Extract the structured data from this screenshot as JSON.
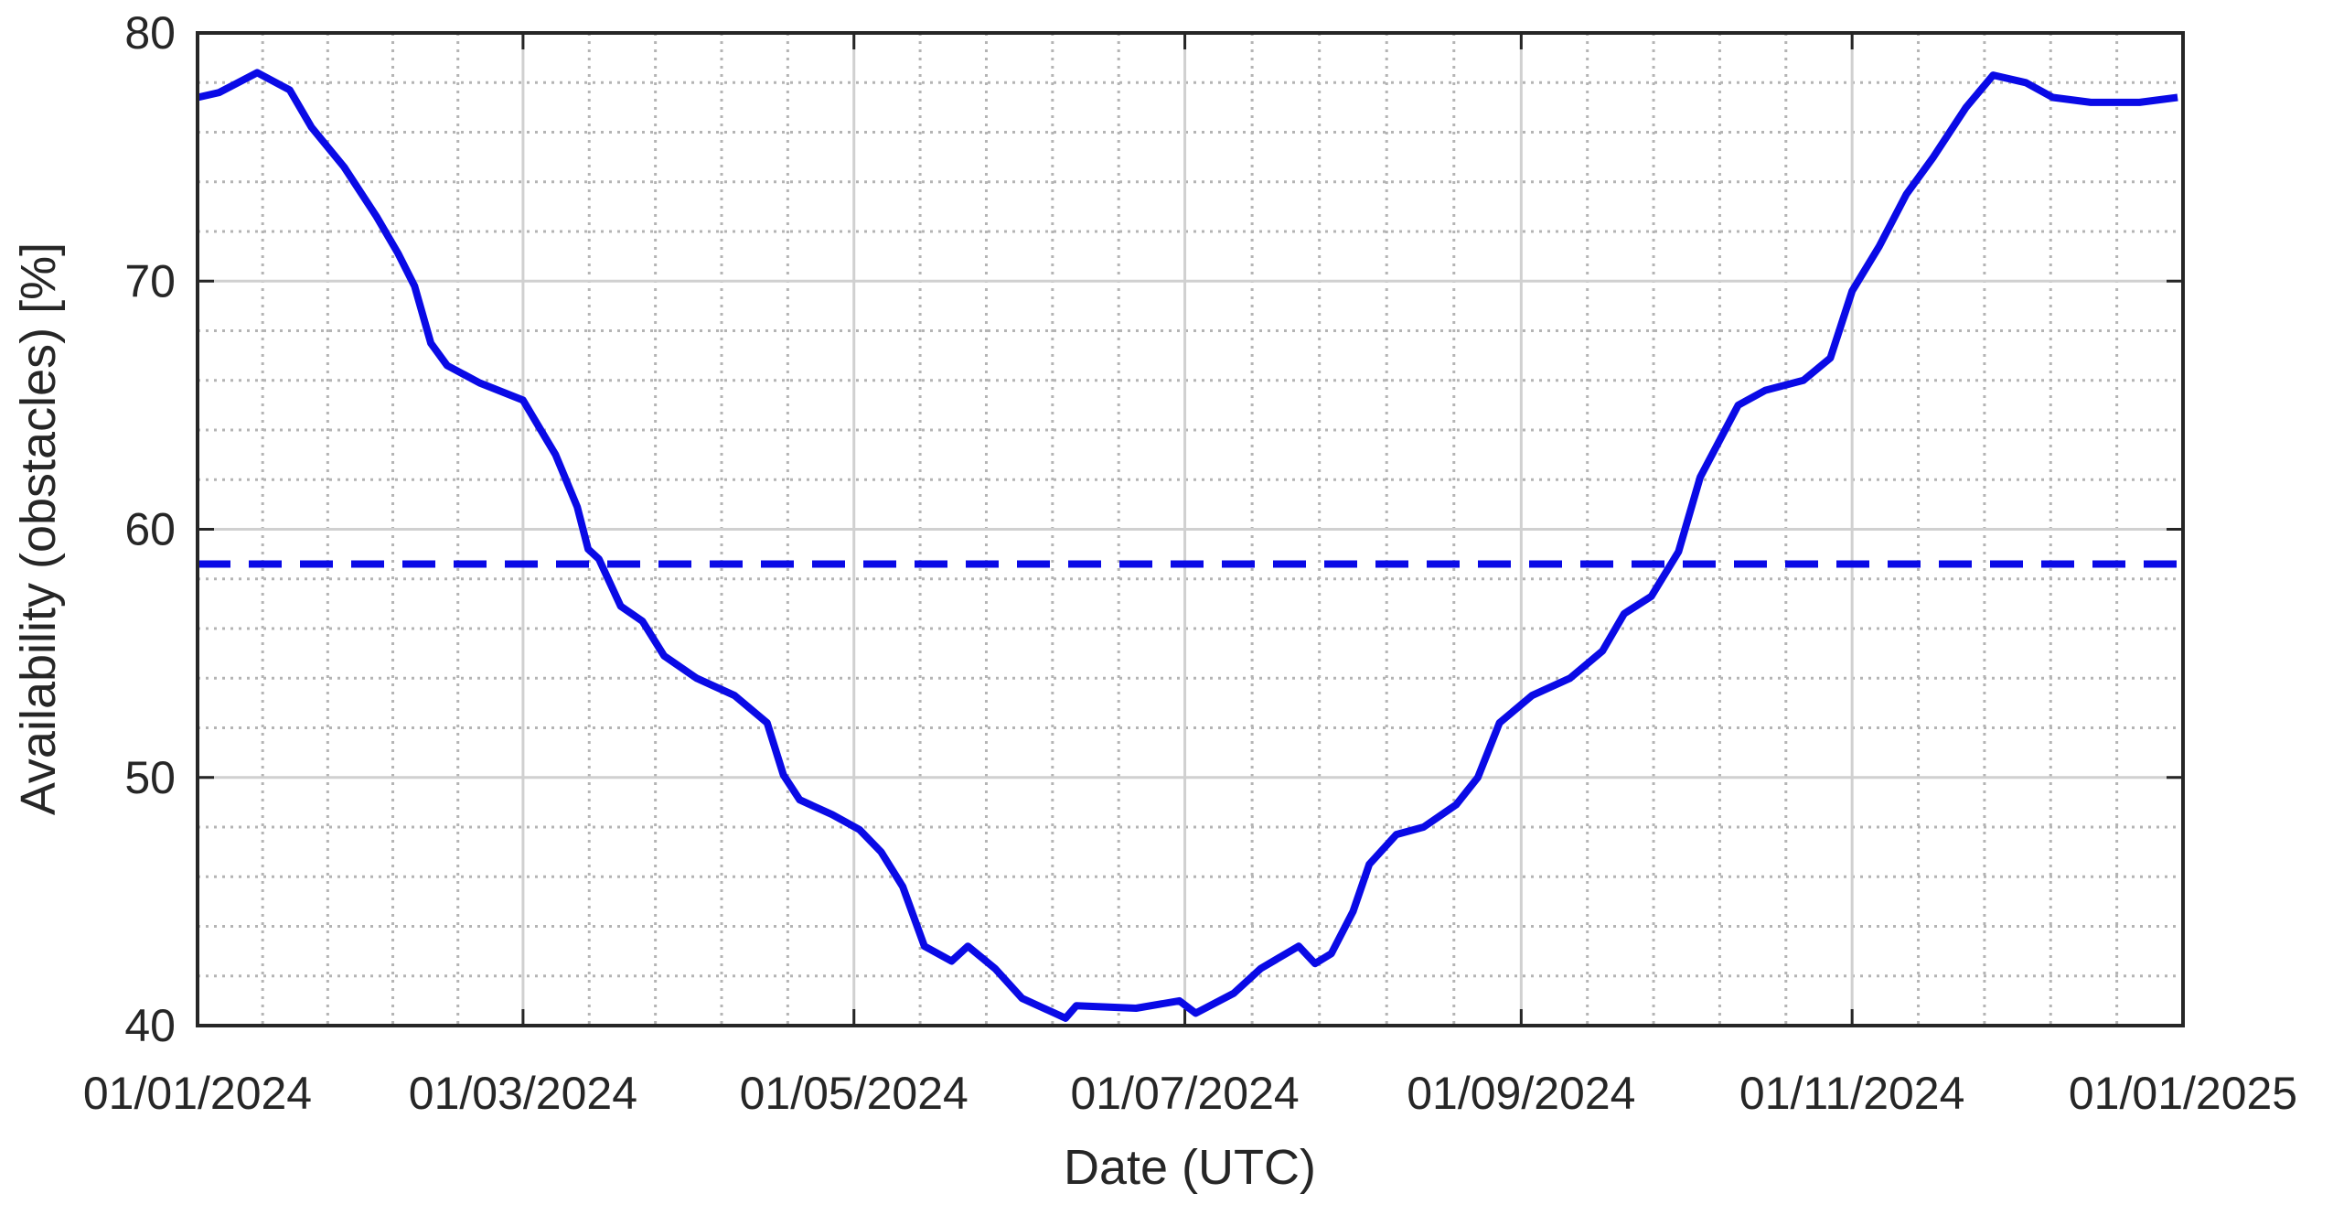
{
  "chart_data": {
    "type": "line",
    "x_label": "Date (UTC)",
    "y_label": "Availability (obstacles) [%]",
    "xlim": [
      "2024-01-01",
      "2025-01-01"
    ],
    "xticks": [
      {
        "value": "2024-01-01",
        "label": "01/01/2024"
      },
      {
        "value": "2024-03-01",
        "label": "01/03/2024"
      },
      {
        "value": "2024-05-01",
        "label": "01/05/2024"
      },
      {
        "value": "2024-07-01",
        "label": "01/07/2024"
      },
      {
        "value": "2024-09-01",
        "label": "01/09/2024"
      },
      {
        "value": "2024-11-01",
        "label": "01/11/2024"
      },
      {
        "value": "2025-01-01",
        "label": "01/01/2025"
      }
    ],
    "ylim": [
      40,
      80
    ],
    "yticks": [
      40,
      50,
      60,
      70,
      80
    ],
    "grid": true,
    "minor_grid": true,
    "minor_subdivisions": 5,
    "reference_line": {
      "value": 58.6,
      "color": "#0a0ae6",
      "style": "dashed"
    },
    "series": [
      {
        "color": "#0a0ae6",
        "x": [
          "2024-01-01",
          "2024-01-05",
          "2024-01-12",
          "2024-01-18",
          "2024-01-22",
          "2024-01-28",
          "2024-02-03",
          "2024-02-07",
          "2024-02-10",
          "2024-02-13",
          "2024-02-16",
          "2024-02-22",
          "2024-03-01",
          "2024-03-07",
          "2024-03-11",
          "2024-03-13",
          "2024-03-15",
          "2024-03-19",
          "2024-03-23",
          "2024-03-27",
          "2024-04-02",
          "2024-04-09",
          "2024-04-15",
          "2024-04-18",
          "2024-04-21",
          "2024-04-27",
          "2024-05-02",
          "2024-05-06",
          "2024-05-10",
          "2024-05-14",
          "2024-05-19",
          "2024-05-22",
          "2024-05-27",
          "2024-06-01",
          "2024-06-07",
          "2024-06-09",
          "2024-06-11",
          "2024-06-22",
          "2024-06-30",
          "2024-07-03",
          "2024-07-10",
          "2024-07-15",
          "2024-07-22",
          "2024-07-25",
          "2024-07-28",
          "2024-08-01",
          "2024-08-04",
          "2024-08-09",
          "2024-08-14",
          "2024-08-20",
          "2024-08-24",
          "2024-08-28",
          "2024-09-03",
          "2024-09-10",
          "2024-09-16",
          "2024-09-20",
          "2024-09-25",
          "2024-09-30",
          "2024-10-04",
          "2024-10-11",
          "2024-10-16",
          "2024-10-23",
          "2024-10-28",
          "2024-11-01",
          "2024-11-06",
          "2024-11-11",
          "2024-11-16",
          "2024-11-22",
          "2024-11-27",
          "2024-12-03",
          "2024-12-08",
          "2024-12-15",
          "2024-12-24",
          "2024-12-31"
        ],
        "values": [
          77.4,
          77.6,
          78.4,
          77.7,
          76.2,
          74.6,
          72.6,
          71.1,
          69.8,
          67.5,
          66.6,
          65.9,
          65.2,
          63.0,
          60.9,
          59.2,
          58.8,
          56.9,
          56.3,
          54.9,
          54.0,
          53.3,
          52.2,
          50.1,
          49.1,
          48.5,
          47.9,
          47.0,
          45.6,
          43.2,
          42.6,
          43.2,
          42.3,
          41.1,
          40.5,
          40.3,
          40.8,
          40.7,
          41.0,
          40.5,
          41.3,
          42.3,
          43.2,
          42.5,
          42.9,
          44.6,
          46.5,
          47.7,
          48.0,
          48.9,
          50.0,
          52.2,
          53.3,
          54.0,
          55.1,
          56.6,
          57.3,
          59.1,
          62.1,
          65.0,
          65.6,
          66.0,
          66.9,
          69.6,
          71.4,
          73.5,
          75.0,
          77.0,
          78.3,
          78.0,
          77.4,
          77.2,
          77.2,
          77.4
        ]
      }
    ]
  }
}
